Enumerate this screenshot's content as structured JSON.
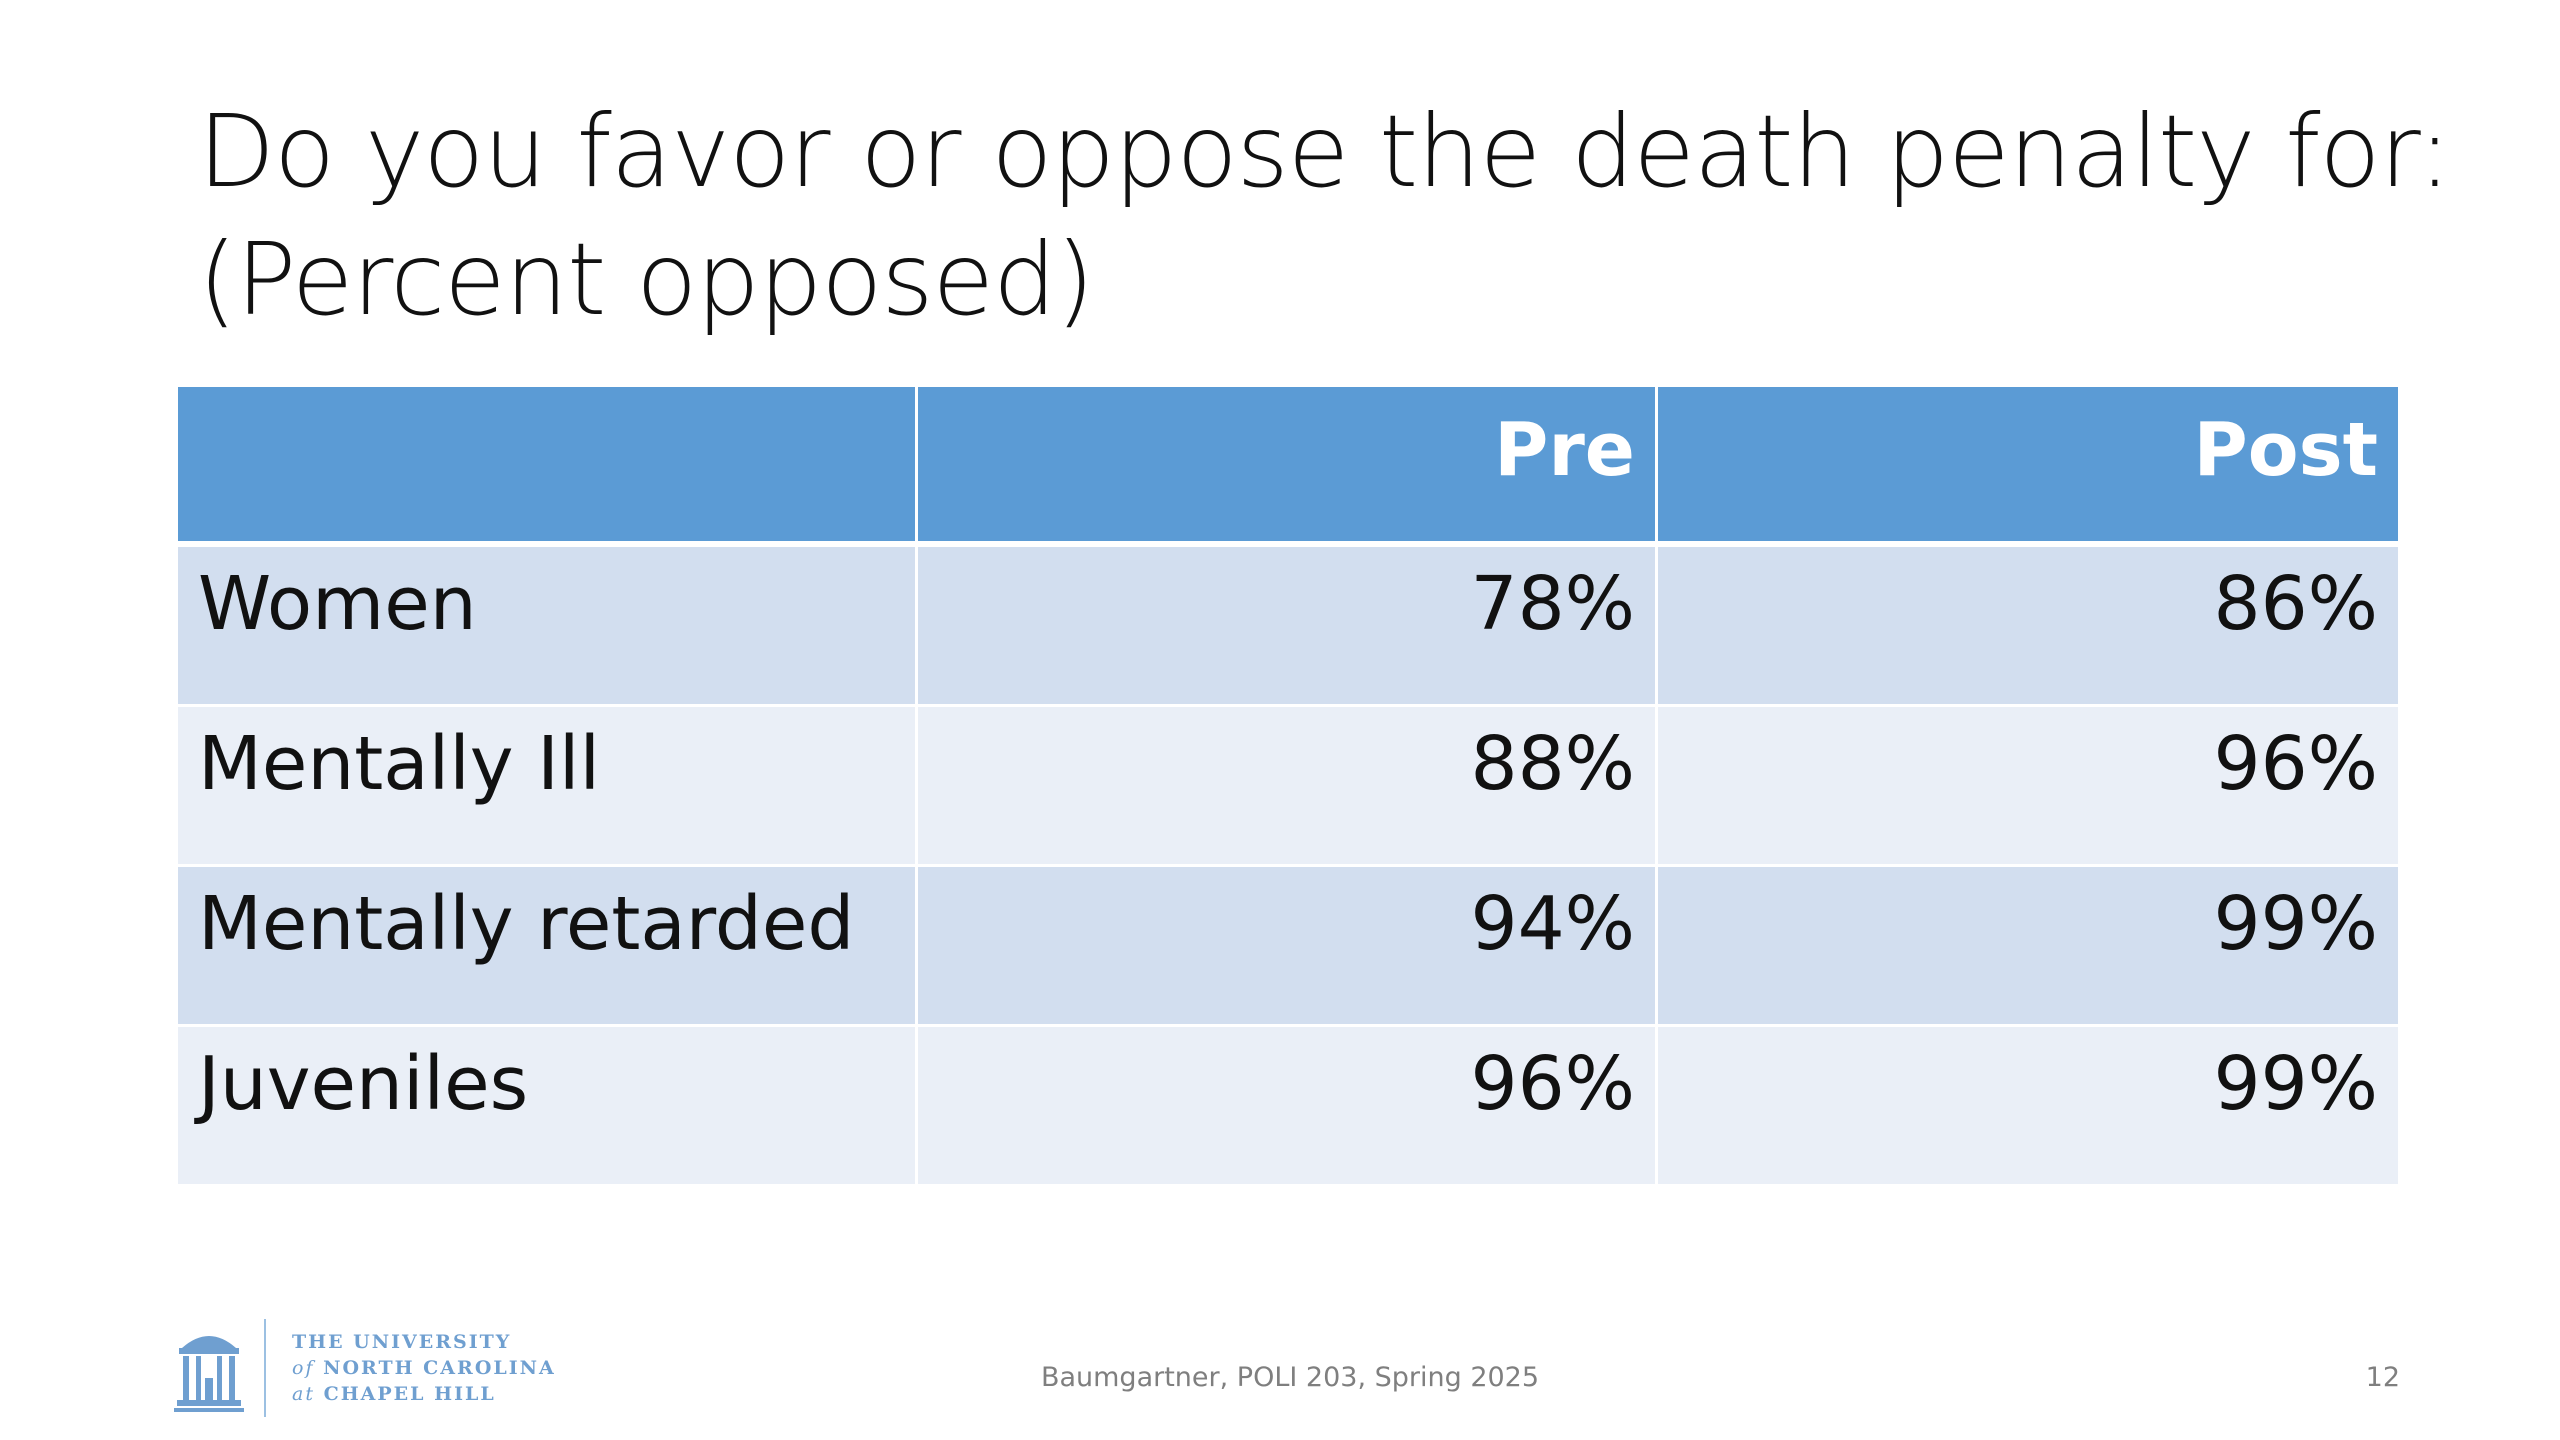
{
  "slide": {
    "title_line1": "Do you favor or oppose the death penalty for:",
    "title_line2": "(Percent opposed)"
  },
  "table": {
    "headers": [
      "",
      "Pre",
      "Post"
    ],
    "rows": [
      {
        "label": "Women",
        "pre": "78%",
        "post": "86%"
      },
      {
        "label": "Mentally Ill",
        "pre": "88%",
        "post": "96%"
      },
      {
        "label": "Mentally retarded",
        "pre": "94%",
        "post": "99%"
      },
      {
        "label": "Juveniles",
        "pre": "96%",
        "post": "99%"
      }
    ]
  },
  "logo": {
    "line1": "THE UNIVERSITY",
    "line2_prefix": "of",
    "line2_rest": " NORTH CAROLINA",
    "line3_prefix": "at",
    "line3_rest": " CHAPEL HILL"
  },
  "footer": {
    "text": "Baumgartner, POLI 203, Spring 2025",
    "slide_number": "12"
  },
  "colors": {
    "header_blue": "#5b9bd5",
    "row_dark": "#d2deef",
    "row_light": "#eaeff7",
    "logo_blue": "#6f9fd0"
  }
}
